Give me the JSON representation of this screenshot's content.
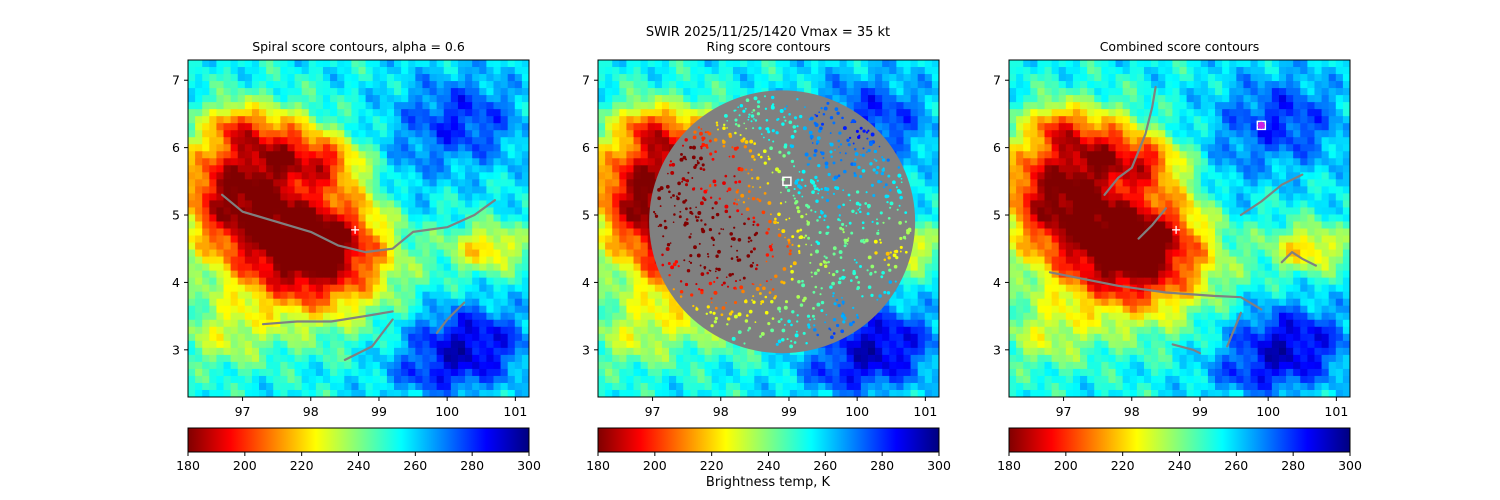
{
  "suptitle": "SWIR  2025/11/25/1420    Vmax = 35 kt",
  "colorbar_label": "Brightness temp, K",
  "colormap": {
    "name": "jet_r",
    "stops": [
      "#800000",
      "#ff0000",
      "#ff8000",
      "#ffff00",
      "#80ff80",
      "#00ffff",
      "#0080ff",
      "#0000ff",
      "#000080"
    ]
  },
  "contour_color": "#808080",
  "marker_color_white": "#ffffff",
  "marker_color_magenta": "#c81ee6",
  "chart_data": [
    {
      "type": "heatmap",
      "title": "Spiral score contours, alpha =  0.6",
      "xlim": [
        96.2,
        101.2
      ],
      "ylim": [
        2.3,
        7.3
      ],
      "xticks": [
        "97",
        "98",
        "99",
        "100",
        "101"
      ],
      "yticks": [
        "3",
        "4",
        "5",
        "6",
        "7"
      ],
      "colorbar": {
        "vmin": 180,
        "vmax": 300,
        "ticks": [
          "180",
          "200",
          "220",
          "240",
          "260",
          "280",
          "300"
        ]
      },
      "center_marker": {
        "type": "plus",
        "lon": 98.65,
        "lat": 4.78
      },
      "contours": [
        [
          [
            96.7,
            5.3
          ],
          [
            97.0,
            5.05
          ],
          [
            97.5,
            4.9
          ],
          [
            98.0,
            4.75
          ],
          [
            98.4,
            4.55
          ],
          [
            98.8,
            4.45
          ],
          [
            99.2,
            4.5
          ],
          [
            99.5,
            4.75
          ],
          [
            100.0,
            4.82
          ],
          [
            100.4,
            5.0
          ],
          [
            100.7,
            5.22
          ]
        ],
        [
          [
            97.3,
            3.38
          ],
          [
            97.8,
            3.42
          ],
          [
            98.3,
            3.42
          ],
          [
            98.8,
            3.5
          ],
          [
            99.2,
            3.57
          ]
        ],
        [
          [
            98.5,
            2.85
          ],
          [
            98.9,
            3.05
          ],
          [
            99.2,
            3.45
          ]
        ],
        [
          [
            99.85,
            3.25
          ],
          [
            100.0,
            3.45
          ],
          [
            100.25,
            3.7
          ]
        ]
      ]
    },
    {
      "type": "heatmap",
      "title": "Ring score contours",
      "xlim": [
        96.2,
        101.2
      ],
      "ylim": [
        2.3,
        7.3
      ],
      "xticks": [
        "97",
        "98",
        "99",
        "100",
        "101"
      ],
      "yticks": [
        "3",
        "4",
        "5",
        "6",
        "7"
      ],
      "colorbar": {
        "vmin": 180,
        "vmax": 300,
        "ticks": [
          "180",
          "200",
          "220",
          "240",
          "260",
          "280",
          "300"
        ]
      },
      "center_marker": {
        "type": "square",
        "lon": 98.97,
        "lat": 5.5
      },
      "ring_region": {
        "center_lon": 98.9,
        "center_lat": 4.9,
        "radius_deg": 1.95
      }
    },
    {
      "type": "heatmap",
      "title": "Combined score contours",
      "xlim": [
        96.2,
        101.2
      ],
      "ylim": [
        2.3,
        7.3
      ],
      "xticks": [
        "97",
        "98",
        "99",
        "100",
        "101"
      ],
      "yticks": [
        "3",
        "4",
        "5",
        "6",
        "7"
      ],
      "colorbar": {
        "vmin": 180,
        "vmax": 300,
        "ticks": [
          "180",
          "200",
          "220",
          "240",
          "260",
          "280",
          "300"
        ]
      },
      "center_marker": {
        "type": "plus",
        "lon": 98.65,
        "lat": 4.78
      },
      "max_marker": {
        "type": "dot",
        "lon": 99.9,
        "lat": 6.33
      },
      "contours": [
        [
          [
            96.8,
            4.15
          ],
          [
            97.3,
            4.05
          ],
          [
            97.8,
            3.95
          ],
          [
            98.5,
            3.85
          ],
          [
            99.2,
            3.8
          ],
          [
            99.6,
            3.78
          ],
          [
            99.9,
            3.6
          ]
        ],
        [
          [
            98.6,
            3.08
          ],
          [
            98.9,
            3.0
          ],
          [
            99.0,
            2.95
          ]
        ],
        [
          [
            99.4,
            3.05
          ],
          [
            99.5,
            3.3
          ],
          [
            99.6,
            3.55
          ]
        ],
        [
          [
            99.6,
            5.0
          ],
          [
            99.9,
            5.2
          ],
          [
            100.2,
            5.45
          ],
          [
            100.5,
            5.6
          ]
        ],
        [
          [
            100.2,
            4.3
          ],
          [
            100.35,
            4.45
          ],
          [
            100.5,
            4.35
          ],
          [
            100.7,
            4.25
          ]
        ],
        [
          [
            97.6,
            5.3
          ],
          [
            97.8,
            5.55
          ],
          [
            98.0,
            5.7
          ],
          [
            98.1,
            5.95
          ],
          [
            98.2,
            6.2
          ],
          [
            98.3,
            6.6
          ],
          [
            98.35,
            6.9
          ]
        ],
        [
          [
            98.5,
            5.1
          ],
          [
            98.3,
            4.85
          ],
          [
            98.1,
            4.65
          ]
        ]
      ]
    }
  ]
}
